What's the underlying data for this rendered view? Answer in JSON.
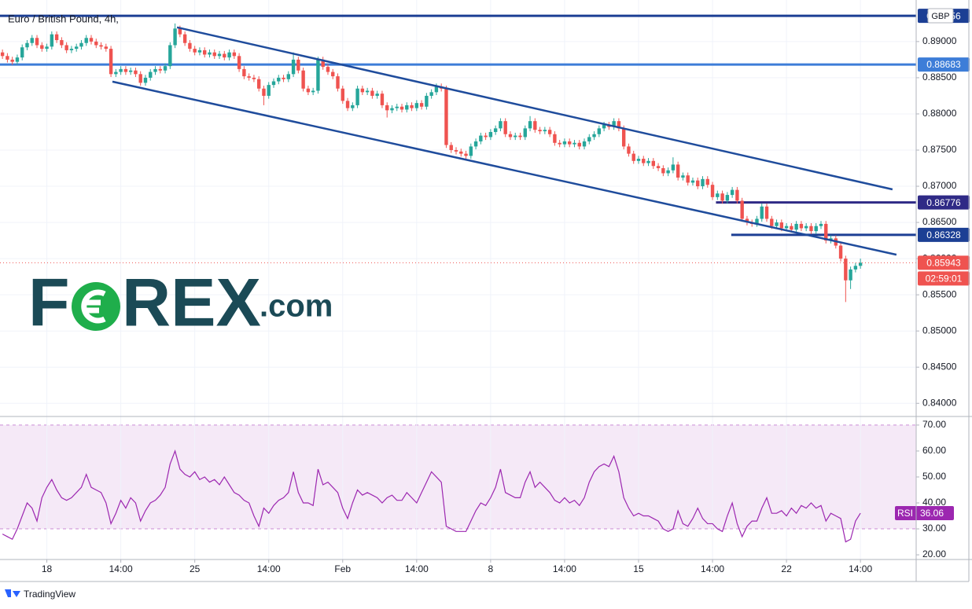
{
  "chart_data": [
    {
      "type": "candlestick",
      "title": "Euro / British Pound, 4h,",
      "currency": "GBP",
      "countdown": "02:59:01",
      "up_color": "#26a69a",
      "down_color": "#ef5350",
      "grid": true,
      "xlim": [
        -0.5,
        185.3
      ],
      "ylim": [
        0.8384,
        0.8952
      ],
      "xticks": [
        {
          "value": 9,
          "label": "18"
        },
        {
          "value": 24,
          "label": "14:00"
        },
        {
          "value": 39,
          "label": "25"
        },
        {
          "value": 54,
          "label": "14:00"
        },
        {
          "value": 69,
          "label": "Feb"
        },
        {
          "value": 84,
          "label": "14:00"
        },
        {
          "value": 99,
          "label": "8"
        },
        {
          "value": 114,
          "label": "14:00"
        },
        {
          "value": 129,
          "label": "15"
        },
        {
          "value": 144,
          "label": "14:00"
        },
        {
          "value": 159,
          "label": "22"
        },
        {
          "value": 174,
          "label": "14:00"
        }
      ],
      "yticks": [
        {
          "value": 0.84,
          "label": "0.84000"
        },
        {
          "value": 0.845,
          "label": "0.84500"
        },
        {
          "value": 0.85,
          "label": "0.85000"
        },
        {
          "value": 0.855,
          "label": "0.85500"
        },
        {
          "value": 0.86,
          "label": "0.86000"
        },
        {
          "value": 0.865,
          "label": "0.86500"
        },
        {
          "value": 0.87,
          "label": "0.87000"
        },
        {
          "value": 0.875,
          "label": "0.87500"
        },
        {
          "value": 0.88,
          "label": "0.88000"
        },
        {
          "value": 0.885,
          "label": "0.88500"
        },
        {
          "value": 0.89,
          "label": "0.89000"
        }
      ],
      "hlines": [
        {
          "value": 0.89356,
          "color": "#1c3f94",
          "start": -0.5
        },
        {
          "value": 0.88683,
          "color": "#3d7dd8",
          "start": -0.5
        },
        {
          "value": 0.86776,
          "color": "#2f2a86",
          "start": 144.7
        },
        {
          "value": 0.86328,
          "color": "#1c3f94",
          "start": 147.8
        }
      ],
      "trendlines": [
        {
          "x": [
            35.4,
            180.5
          ],
          "y": [
            0.89196,
            0.86957
          ],
          "color": "#1f4c9c"
        },
        {
          "x": [
            22.3,
            181.3
          ],
          "y": [
            0.88446,
            0.86054
          ],
          "color": "#1f4c9c"
        }
      ],
      "watermark": {
        "left": "F",
        "right": "REX",
        "suffix": ".com"
      },
      "footer": "TradingView",
      "open": [
        0.8885,
        0.888,
        0.8875,
        0.8872,
        0.8878,
        0.8892,
        0.8898,
        0.8905,
        0.8895,
        0.889,
        0.8893,
        0.891,
        0.8902,
        0.8895,
        0.8888,
        0.889,
        0.8893,
        0.8898,
        0.8905,
        0.89,
        0.8895,
        0.8893,
        0.889,
        0.8855,
        0.8858,
        0.8862,
        0.8858,
        0.886,
        0.8855,
        0.8843,
        0.885,
        0.8858,
        0.8862,
        0.886,
        0.8866,
        0.8895,
        0.8918,
        0.891,
        0.8898,
        0.889,
        0.8885,
        0.8888,
        0.8882,
        0.8885,
        0.888,
        0.8883,
        0.8878,
        0.8885,
        0.888,
        0.8862,
        0.8852,
        0.885,
        0.8848,
        0.8835,
        0.8825,
        0.884,
        0.8845,
        0.885,
        0.8848,
        0.8855,
        0.8875,
        0.886,
        0.8835,
        0.883,
        0.8832,
        0.8875,
        0.8865,
        0.8858,
        0.8852,
        0.8835,
        0.8818,
        0.8808,
        0.8812,
        0.8835,
        0.883,
        0.8832,
        0.8825,
        0.8828,
        0.8812,
        0.8805,
        0.8808,
        0.881,
        0.8806,
        0.8812,
        0.8808,
        0.8815,
        0.881,
        0.8825,
        0.883,
        0.8838,
        0.8835,
        0.8757,
        0.875,
        0.8748,
        0.8745,
        0.8742,
        0.8755,
        0.8762,
        0.877,
        0.8768,
        0.8775,
        0.878,
        0.879,
        0.8772,
        0.8768,
        0.877,
        0.8768,
        0.878,
        0.879,
        0.8778,
        0.8776,
        0.8778,
        0.8772,
        0.876,
        0.8758,
        0.8762,
        0.8758,
        0.876,
        0.8755,
        0.8762,
        0.8768,
        0.8772,
        0.878,
        0.8785,
        0.8782,
        0.879,
        0.878,
        0.8755,
        0.8745,
        0.8735,
        0.8738,
        0.8732,
        0.8735,
        0.8728,
        0.8725,
        0.8718,
        0.8722,
        0.873,
        0.8712,
        0.8715,
        0.8705,
        0.8708,
        0.87,
        0.871,
        0.8702,
        0.8685,
        0.869,
        0.868,
        0.8688,
        0.8695,
        0.868,
        0.8655,
        0.865,
        0.8648,
        0.8655,
        0.8672,
        0.8655,
        0.8645,
        0.865,
        0.8642,
        0.8645,
        0.864,
        0.8648,
        0.8642,
        0.8645,
        0.8638,
        0.8645,
        0.8648,
        0.8625,
        0.8628,
        0.8618,
        0.86,
        0.857,
        0.8585,
        0.859
      ],
      "high": [
        0.8889,
        0.8884,
        0.8879,
        0.8882,
        0.8896,
        0.8902,
        0.8909,
        0.8909,
        0.8899,
        0.8897,
        0.8914,
        0.8914,
        0.8906,
        0.8899,
        0.8894,
        0.8897,
        0.8902,
        0.8909,
        0.8909,
        0.8904,
        0.8899,
        0.8897,
        0.8894,
        0.8862,
        0.8866,
        0.8866,
        0.8864,
        0.8864,
        0.8859,
        0.8854,
        0.8862,
        0.8866,
        0.8866,
        0.887,
        0.8899,
        0.8925,
        0.8922,
        0.8914,
        0.8902,
        0.8894,
        0.8892,
        0.8892,
        0.8889,
        0.8889,
        0.8887,
        0.8887,
        0.8889,
        0.8889,
        0.8884,
        0.8866,
        0.8856,
        0.8854,
        0.8852,
        0.8839,
        0.8844,
        0.8849,
        0.8854,
        0.8854,
        0.8859,
        0.8885,
        0.8879,
        0.8864,
        0.8839,
        0.8836,
        0.8879,
        0.8879,
        0.8869,
        0.8862,
        0.8856,
        0.8839,
        0.8822,
        0.8816,
        0.8839,
        0.8839,
        0.8836,
        0.8836,
        0.8832,
        0.8832,
        0.8816,
        0.8812,
        0.8814,
        0.8814,
        0.8816,
        0.8816,
        0.8819,
        0.8819,
        0.8829,
        0.8834,
        0.8842,
        0.8842,
        0.8839,
        0.8761,
        0.8754,
        0.8752,
        0.8749,
        0.8759,
        0.8766,
        0.8774,
        0.8774,
        0.8779,
        0.8784,
        0.8794,
        0.8794,
        0.8776,
        0.8774,
        0.8774,
        0.8784,
        0.8797,
        0.8794,
        0.8782,
        0.8782,
        0.8782,
        0.8776,
        0.8764,
        0.8766,
        0.8766,
        0.8764,
        0.8764,
        0.8766,
        0.8772,
        0.8776,
        0.8784,
        0.8789,
        0.8789,
        0.8794,
        0.8794,
        0.8784,
        0.8759,
        0.8749,
        0.8742,
        0.8742,
        0.8739,
        0.8739,
        0.8732,
        0.8729,
        0.8726,
        0.874,
        0.8734,
        0.8719,
        0.8719,
        0.8712,
        0.8712,
        0.8714,
        0.8714,
        0.8706,
        0.8694,
        0.8694,
        0.8692,
        0.8699,
        0.8699,
        0.8684,
        0.8659,
        0.8654,
        0.8659,
        0.8676,
        0.8676,
        0.8659,
        0.8654,
        0.8654,
        0.8649,
        0.8649,
        0.8652,
        0.8652,
        0.8649,
        0.8649,
        0.8649,
        0.8652,
        0.8652,
        0.8632,
        0.8632,
        0.8622,
        0.8604,
        0.8589,
        0.8594,
        0.86
      ],
      "low": [
        0.8876,
        0.8871,
        0.8868,
        0.8868,
        0.8874,
        0.8888,
        0.8894,
        0.8891,
        0.8886,
        0.8886,
        0.8889,
        0.8898,
        0.8891,
        0.8884,
        0.8884,
        0.8886,
        0.8889,
        0.8894,
        0.8896,
        0.8891,
        0.8889,
        0.8886,
        0.8851,
        0.8851,
        0.8854,
        0.8854,
        0.8854,
        0.8851,
        0.8839,
        0.8839,
        0.8846,
        0.8854,
        0.8856,
        0.8856,
        0.8862,
        0.8891,
        0.8906,
        0.8894,
        0.8886,
        0.8881,
        0.8881,
        0.8878,
        0.8878,
        0.8876,
        0.8876,
        0.8874,
        0.8874,
        0.8876,
        0.8858,
        0.8848,
        0.8846,
        0.8844,
        0.8831,
        0.8812,
        0.8821,
        0.8836,
        0.8841,
        0.8844,
        0.8844,
        0.8851,
        0.8856,
        0.8831,
        0.8826,
        0.8826,
        0.8828,
        0.8861,
        0.8854,
        0.8848,
        0.8831,
        0.8814,
        0.8804,
        0.8804,
        0.8808,
        0.8826,
        0.8826,
        0.8821,
        0.8821,
        0.8808,
        0.8795,
        0.8801,
        0.8804,
        0.8802,
        0.8802,
        0.8804,
        0.8804,
        0.8806,
        0.8806,
        0.8821,
        0.8826,
        0.8831,
        0.8753,
        0.8746,
        0.8744,
        0.8741,
        0.8738,
        0.8738,
        0.8751,
        0.8758,
        0.8764,
        0.8764,
        0.8771,
        0.8776,
        0.8768,
        0.8764,
        0.8764,
        0.8764,
        0.8764,
        0.8776,
        0.8774,
        0.8772,
        0.8772,
        0.8768,
        0.8756,
        0.8754,
        0.8754,
        0.8754,
        0.8754,
        0.8751,
        0.8751,
        0.8758,
        0.8764,
        0.8768,
        0.8776,
        0.8778,
        0.8778,
        0.8776,
        0.8751,
        0.8741,
        0.8731,
        0.8731,
        0.8728,
        0.8728,
        0.8724,
        0.8721,
        0.8714,
        0.8714,
        0.8718,
        0.8708,
        0.8708,
        0.8701,
        0.8701,
        0.8696,
        0.8696,
        0.8698,
        0.8681,
        0.8681,
        0.8676,
        0.8676,
        0.8684,
        0.8676,
        0.8651,
        0.8646,
        0.8644,
        0.8644,
        0.8651,
        0.8651,
        0.8641,
        0.8641,
        0.8638,
        0.8638,
        0.8636,
        0.8636,
        0.8638,
        0.8638,
        0.8634,
        0.8634,
        0.8641,
        0.8621,
        0.8621,
        0.8614,
        0.8596,
        0.854,
        0.8558,
        0.8581,
        0.8586
      ],
      "close": [
        0.888,
        0.8875,
        0.8872,
        0.8878,
        0.8892,
        0.8898,
        0.8905,
        0.8895,
        0.889,
        0.8893,
        0.891,
        0.8902,
        0.8895,
        0.8888,
        0.889,
        0.8893,
        0.8898,
        0.8905,
        0.89,
        0.8895,
        0.8893,
        0.889,
        0.8855,
        0.8858,
        0.8862,
        0.8858,
        0.886,
        0.8855,
        0.8843,
        0.885,
        0.8858,
        0.8862,
        0.886,
        0.8866,
        0.8895,
        0.8918,
        0.891,
        0.8898,
        0.889,
        0.8885,
        0.8888,
        0.8882,
        0.8885,
        0.888,
        0.8883,
        0.8878,
        0.8885,
        0.888,
        0.8862,
        0.8852,
        0.885,
        0.8848,
        0.8835,
        0.8825,
        0.884,
        0.8845,
        0.885,
        0.8848,
        0.8855,
        0.8875,
        0.886,
        0.8835,
        0.883,
        0.8832,
        0.8875,
        0.8865,
        0.8858,
        0.8852,
        0.8835,
        0.8818,
        0.8808,
        0.8812,
        0.8835,
        0.883,
        0.8832,
        0.8825,
        0.8828,
        0.8812,
        0.8805,
        0.8808,
        0.881,
        0.8806,
        0.8812,
        0.8808,
        0.8815,
        0.881,
        0.8825,
        0.883,
        0.8838,
        0.8835,
        0.8757,
        0.875,
        0.8748,
        0.8745,
        0.8742,
        0.8755,
        0.8762,
        0.877,
        0.8768,
        0.8775,
        0.878,
        0.879,
        0.8772,
        0.8768,
        0.877,
        0.8768,
        0.878,
        0.879,
        0.8778,
        0.8776,
        0.8778,
        0.8772,
        0.876,
        0.8758,
        0.8762,
        0.8758,
        0.876,
        0.8755,
        0.8762,
        0.8768,
        0.8772,
        0.878,
        0.8785,
        0.8782,
        0.879,
        0.878,
        0.8755,
        0.8745,
        0.8735,
        0.8738,
        0.8732,
        0.8735,
        0.8728,
        0.8725,
        0.8718,
        0.8722,
        0.873,
        0.8712,
        0.8715,
        0.8705,
        0.8708,
        0.87,
        0.871,
        0.8702,
        0.8685,
        0.869,
        0.868,
        0.8688,
        0.8695,
        0.868,
        0.8655,
        0.865,
        0.8648,
        0.8655,
        0.8672,
        0.8655,
        0.8645,
        0.865,
        0.8642,
        0.8645,
        0.864,
        0.8648,
        0.8642,
        0.8645,
        0.8638,
        0.8645,
        0.8648,
        0.8625,
        0.8628,
        0.8618,
        0.86,
        0.857,
        0.8585,
        0.859,
        0.85943
      ]
    },
    {
      "type": "line",
      "ylim": [
        18.2,
        72.7
      ],
      "band": [
        30,
        70
      ],
      "grid": true,
      "yticks": [
        {
          "value": 20,
          "label": "20.00"
        },
        {
          "value": 30,
          "label": "30.00"
        },
        {
          "value": 40,
          "label": "40.00"
        },
        {
          "value": 50,
          "label": "50.00"
        },
        {
          "value": 60,
          "label": "60.00"
        },
        {
          "value": 70,
          "label": "70.00"
        }
      ],
      "series": [
        {
          "name": "RSI",
          "color": "#9c27b0",
          "values": [
            28,
            27,
            26,
            30,
            35,
            40,
            38,
            33,
            42,
            46,
            49,
            45,
            42,
            41,
            42,
            44,
            46,
            51,
            46,
            45,
            44,
            40,
            32,
            36,
            41,
            38,
            42,
            40,
            33,
            37,
            40,
            41,
            43,
            46,
            55,
            60,
            53,
            51,
            50,
            52,
            49,
            50,
            48,
            49,
            47,
            50,
            47,
            44,
            43,
            41,
            40,
            35,
            31,
            38,
            36,
            39,
            41,
            42,
            44,
            52,
            44,
            40,
            40,
            39,
            53,
            47,
            48,
            46,
            44,
            38,
            34,
            40,
            45,
            43,
            44,
            43,
            42,
            40,
            42,
            43,
            41,
            41,
            44,
            42,
            40,
            44,
            48,
            52,
            50,
            48,
            31,
            30,
            29,
            29,
            29,
            33,
            37,
            40,
            39,
            42,
            46,
            53,
            44,
            43,
            42,
            42,
            48,
            52,
            46,
            48,
            46,
            44,
            41,
            40,
            42,
            40,
            41,
            39,
            42,
            48,
            52,
            54,
            55,
            54,
            58,
            52,
            42,
            38,
            35,
            36,
            35,
            35,
            34,
            33,
            30,
            29,
            30,
            37,
            32,
            31,
            34,
            38,
            34,
            32,
            32,
            30,
            29,
            35,
            40,
            32,
            27,
            31,
            33,
            33,
            38,
            42,
            36,
            36,
            37,
            35,
            38,
            36,
            39,
            38,
            40,
            38,
            39,
            33,
            36,
            35,
            34,
            25,
            26,
            33,
            36.06
          ]
        }
      ]
    }
  ]
}
